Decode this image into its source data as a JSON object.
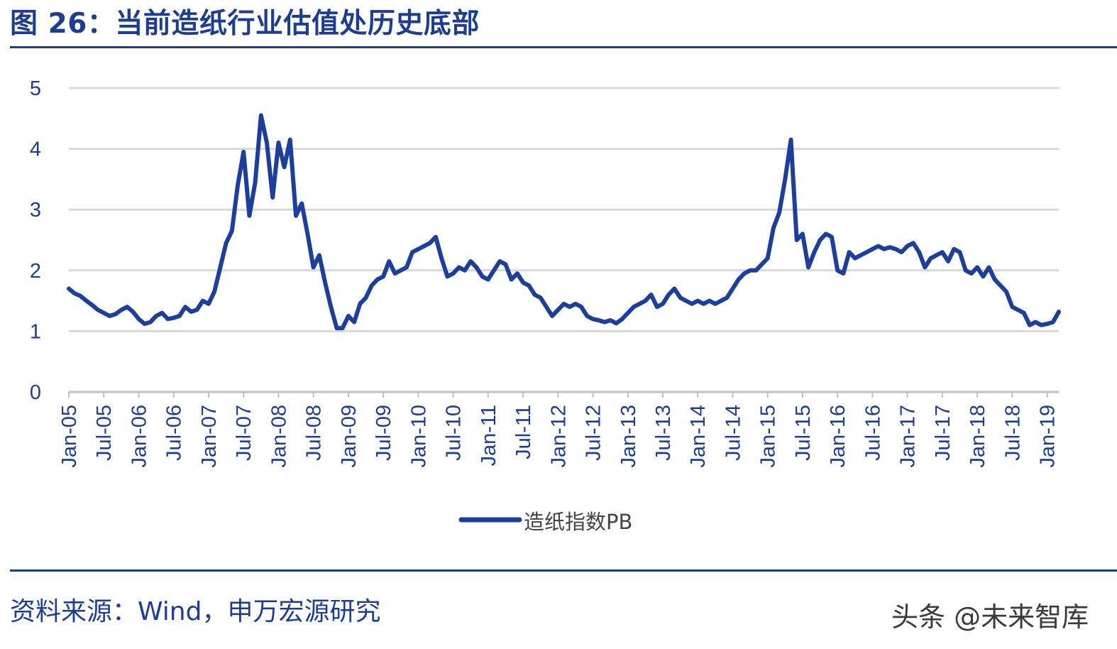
{
  "figure_title": "图 26：当前造纸行业估值处历史底部",
  "source_text": "资料来源：Wind，申万宏源研究",
  "watermark": "头条 @未来智库",
  "colors": {
    "accent": "#1d3d93",
    "series": "#1c3f9c",
    "grid": "#d9d9d9",
    "axis": "#c0c0c0",
    "legend_text": "#444444"
  },
  "chart_data": {
    "type": "line",
    "ylim": [
      0,
      5
    ],
    "yticks": [
      "0",
      "1",
      "2",
      "3",
      "4",
      "5"
    ],
    "x_tick_labels": [
      "Jan-05",
      "Jul-05",
      "Jan-06",
      "Jul-06",
      "Jan-07",
      "Jul-07",
      "Jan-08",
      "Jul-08",
      "Jan-09",
      "Jul-09",
      "Jan-10",
      "Jul-10",
      "Jan-11",
      "Jul-11",
      "Jan-12",
      "Jul-12",
      "Jan-13",
      "Jul-13",
      "Jan-14",
      "Jul-14",
      "Jan-15",
      "Jul-15",
      "Jan-16",
      "Jul-16",
      "Jan-17",
      "Jul-17",
      "Jan-18",
      "Jul-18",
      "Jan-19"
    ],
    "x_range": [
      "2005-01",
      "2019-03"
    ],
    "grid": true,
    "legend_position": "bottom-center",
    "series": [
      {
        "name": "造纸指数PB",
        "points": [
          [
            "2005-01",
            1.7
          ],
          [
            "2005-02",
            1.62
          ],
          [
            "2005-03",
            1.58
          ],
          [
            "2005-04",
            1.5
          ],
          [
            "2005-05",
            1.43
          ],
          [
            "2005-06",
            1.35
          ],
          [
            "2005-07",
            1.3
          ],
          [
            "2005-08",
            1.25
          ],
          [
            "2005-09",
            1.28
          ],
          [
            "2005-10",
            1.35
          ],
          [
            "2005-11",
            1.4
          ],
          [
            "2005-12",
            1.32
          ],
          [
            "2006-01",
            1.2
          ],
          [
            "2006-02",
            1.12
          ],
          [
            "2006-03",
            1.15
          ],
          [
            "2006-04",
            1.25
          ],
          [
            "2006-05",
            1.3
          ],
          [
            "2006-06",
            1.2
          ],
          [
            "2006-07",
            1.22
          ],
          [
            "2006-08",
            1.25
          ],
          [
            "2006-09",
            1.4
          ],
          [
            "2006-10",
            1.32
          ],
          [
            "2006-11",
            1.35
          ],
          [
            "2006-12",
            1.5
          ],
          [
            "2007-01",
            1.45
          ],
          [
            "2007-02",
            1.65
          ],
          [
            "2007-03",
            2.05
          ],
          [
            "2007-04",
            2.45
          ],
          [
            "2007-05",
            2.65
          ],
          [
            "2007-06",
            3.4
          ],
          [
            "2007-07",
            3.95
          ],
          [
            "2007-08",
            2.9
          ],
          [
            "2007-09",
            3.45
          ],
          [
            "2007-10",
            4.55
          ],
          [
            "2007-11",
            4.1
          ],
          [
            "2007-12",
            3.2
          ],
          [
            "2008-01",
            4.1
          ],
          [
            "2008-02",
            3.7
          ],
          [
            "2008-03",
            4.15
          ],
          [
            "2008-04",
            2.9
          ],
          [
            "2008-05",
            3.1
          ],
          [
            "2008-06",
            2.6
          ],
          [
            "2008-07",
            2.05
          ],
          [
            "2008-08",
            2.25
          ],
          [
            "2008-09",
            1.8
          ],
          [
            "2008-10",
            1.4
          ],
          [
            "2008-11",
            1.05
          ],
          [
            "2008-12",
            1.05
          ],
          [
            "2009-01",
            1.25
          ],
          [
            "2009-02",
            1.15
          ],
          [
            "2009-03",
            1.45
          ],
          [
            "2009-04",
            1.55
          ],
          [
            "2009-05",
            1.75
          ],
          [
            "2009-06",
            1.85
          ],
          [
            "2009-07",
            1.9
          ],
          [
            "2009-08",
            2.15
          ],
          [
            "2009-09",
            1.95
          ],
          [
            "2009-10",
            2.0
          ],
          [
            "2009-11",
            2.05
          ],
          [
            "2009-12",
            2.3
          ],
          [
            "2010-01",
            2.35
          ],
          [
            "2010-02",
            2.4
          ],
          [
            "2010-03",
            2.45
          ],
          [
            "2010-04",
            2.55
          ],
          [
            "2010-05",
            2.2
          ],
          [
            "2010-06",
            1.9
          ],
          [
            "2010-07",
            1.95
          ],
          [
            "2010-08",
            2.05
          ],
          [
            "2010-09",
            2.0
          ],
          [
            "2010-10",
            2.15
          ],
          [
            "2010-11",
            2.05
          ],
          [
            "2010-12",
            1.9
          ],
          [
            "2011-01",
            1.85
          ],
          [
            "2011-02",
            2.0
          ],
          [
            "2011-03",
            2.15
          ],
          [
            "2011-04",
            2.1
          ],
          [
            "2011-05",
            1.85
          ],
          [
            "2011-06",
            1.95
          ],
          [
            "2011-07",
            1.8
          ],
          [
            "2011-08",
            1.75
          ],
          [
            "2011-09",
            1.6
          ],
          [
            "2011-10",
            1.55
          ],
          [
            "2011-11",
            1.4
          ],
          [
            "2011-12",
            1.25
          ],
          [
            "2012-01",
            1.35
          ],
          [
            "2012-02",
            1.45
          ],
          [
            "2012-03",
            1.4
          ],
          [
            "2012-04",
            1.45
          ],
          [
            "2012-05",
            1.4
          ],
          [
            "2012-06",
            1.25
          ],
          [
            "2012-07",
            1.2
          ],
          [
            "2012-08",
            1.18
          ],
          [
            "2012-09",
            1.15
          ],
          [
            "2012-10",
            1.18
          ],
          [
            "2012-11",
            1.13
          ],
          [
            "2012-12",
            1.2
          ],
          [
            "2013-01",
            1.3
          ],
          [
            "2013-02",
            1.4
          ],
          [
            "2013-03",
            1.45
          ],
          [
            "2013-04",
            1.5
          ],
          [
            "2013-05",
            1.6
          ],
          [
            "2013-06",
            1.4
          ],
          [
            "2013-07",
            1.45
          ],
          [
            "2013-08",
            1.6
          ],
          [
            "2013-09",
            1.7
          ],
          [
            "2013-10",
            1.55
          ],
          [
            "2013-11",
            1.5
          ],
          [
            "2013-12",
            1.45
          ],
          [
            "2014-01",
            1.5
          ],
          [
            "2014-02",
            1.45
          ],
          [
            "2014-03",
            1.5
          ],
          [
            "2014-04",
            1.45
          ],
          [
            "2014-05",
            1.5
          ],
          [
            "2014-06",
            1.55
          ],
          [
            "2014-07",
            1.7
          ],
          [
            "2014-08",
            1.85
          ],
          [
            "2014-09",
            1.95
          ],
          [
            "2014-10",
            2.0
          ],
          [
            "2014-11",
            2.0
          ],
          [
            "2014-12",
            2.1
          ],
          [
            "2015-01",
            2.2
          ],
          [
            "2015-02",
            2.7
          ],
          [
            "2015-03",
            2.95
          ],
          [
            "2015-04",
            3.5
          ],
          [
            "2015-05",
            4.15
          ],
          [
            "2015-06",
            2.5
          ],
          [
            "2015-07",
            2.6
          ],
          [
            "2015-08",
            2.05
          ],
          [
            "2015-09",
            2.3
          ],
          [
            "2015-10",
            2.5
          ],
          [
            "2015-11",
            2.6
          ],
          [
            "2015-12",
            2.55
          ],
          [
            "2016-01",
            2.0
          ],
          [
            "2016-02",
            1.95
          ],
          [
            "2016-03",
            2.3
          ],
          [
            "2016-04",
            2.2
          ],
          [
            "2016-05",
            2.25
          ],
          [
            "2016-06",
            2.3
          ],
          [
            "2016-07",
            2.35
          ],
          [
            "2016-08",
            2.4
          ],
          [
            "2016-09",
            2.35
          ],
          [
            "2016-10",
            2.38
          ],
          [
            "2016-11",
            2.35
          ],
          [
            "2016-12",
            2.3
          ],
          [
            "2017-01",
            2.4
          ],
          [
            "2017-02",
            2.45
          ],
          [
            "2017-03",
            2.3
          ],
          [
            "2017-04",
            2.05
          ],
          [
            "2017-05",
            2.2
          ],
          [
            "2017-06",
            2.25
          ],
          [
            "2017-07",
            2.3
          ],
          [
            "2017-08",
            2.15
          ],
          [
            "2017-09",
            2.35
          ],
          [
            "2017-10",
            2.3
          ],
          [
            "2017-11",
            2.0
          ],
          [
            "2017-12",
            1.95
          ],
          [
            "2018-01",
            2.05
          ],
          [
            "2018-02",
            1.9
          ],
          [
            "2018-03",
            2.05
          ],
          [
            "2018-04",
            1.85
          ],
          [
            "2018-05",
            1.75
          ],
          [
            "2018-06",
            1.65
          ],
          [
            "2018-07",
            1.4
          ],
          [
            "2018-08",
            1.35
          ],
          [
            "2018-09",
            1.3
          ],
          [
            "2018-10",
            1.1
          ],
          [
            "2018-11",
            1.15
          ],
          [
            "2018-12",
            1.1
          ],
          [
            "2019-01",
            1.12
          ],
          [
            "2019-02",
            1.15
          ],
          [
            "2019-03",
            1.32
          ]
        ]
      }
    ]
  }
}
